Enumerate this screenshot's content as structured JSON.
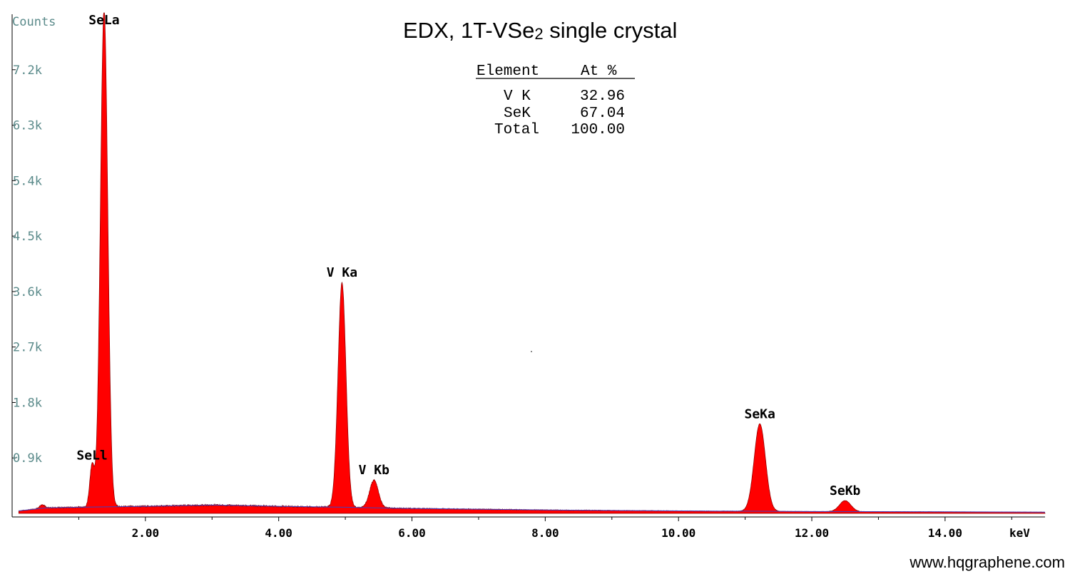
{
  "chart_data": {
    "type": "area",
    "title": "EDX, 1T-VSe",
    "title_subscript": "2",
    "title_suffix": " single crystal",
    "ylabel": "Counts",
    "xlabel": "keV",
    "xlim": [
      0,
      15.5
    ],
    "ylim": [
      0,
      8100
    ],
    "x_ticks": [
      {
        "value": 2,
        "label": "2.00"
      },
      {
        "value": 4,
        "label": "4.00"
      },
      {
        "value": 6,
        "label": "6.00"
      },
      {
        "value": 8,
        "label": "8.00"
      },
      {
        "value": 10,
        "label": "10.00"
      },
      {
        "value": 12,
        "label": "12.00"
      },
      {
        "value": 14,
        "label": "14.00"
      }
    ],
    "y_ticks": [
      {
        "value": 900,
        "label": "0.9k"
      },
      {
        "value": 1800,
        "label": "1.8k"
      },
      {
        "value": 2700,
        "label": "2.7k"
      },
      {
        "value": 3600,
        "label": "3.6k"
      },
      {
        "value": 4500,
        "label": "4.5k"
      },
      {
        "value": 5400,
        "label": "5.4k"
      },
      {
        "value": 6300,
        "label": "6.3k"
      },
      {
        "value": 7200,
        "label": "7.2k"
      }
    ],
    "peaks": [
      {
        "label": "SeLl",
        "energy": 1.2,
        "height": 680,
        "width": 0.035
      },
      {
        "label": "SeLa",
        "energy": 1.38,
        "height": 8100,
        "width": 0.055
      },
      {
        "label": "V Ka",
        "energy": 4.95,
        "height": 3650,
        "width": 0.06
      },
      {
        "label": "V Kb",
        "energy": 5.43,
        "height": 450,
        "width": 0.065
      },
      {
        "label": "SeKa",
        "energy": 11.22,
        "height": 1420,
        "width": 0.085
      },
      {
        "label": "SeKb",
        "energy": 12.5,
        "height": 180,
        "width": 0.085
      }
    ],
    "background": [
      [
        0.1,
        40
      ],
      [
        0.5,
        90
      ],
      [
        1.0,
        100
      ],
      [
        2.0,
        115
      ],
      [
        3.0,
        135
      ],
      [
        4.0,
        115
      ],
      [
        5.0,
        100
      ],
      [
        6.0,
        80
      ],
      [
        8.0,
        55
      ],
      [
        10.0,
        40
      ],
      [
        12.0,
        30
      ],
      [
        14.0,
        25
      ],
      [
        15.5,
        20
      ]
    ],
    "series_color": "#ff0000",
    "background_line_color": "#4040c0",
    "axis_label_color": "#5a8a8a"
  },
  "composition_table": {
    "headers": [
      "Element",
      "At %"
    ],
    "rows": [
      {
        "element": "V K",
        "value": "32.96"
      },
      {
        "element": "SeK",
        "value": "67.04"
      },
      {
        "element": "Total",
        "value": "100.00"
      }
    ]
  },
  "watermark": "www.hqgraphene.com"
}
